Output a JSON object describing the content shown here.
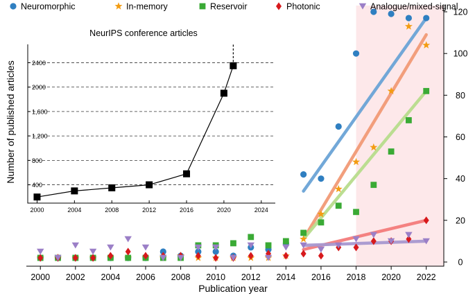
{
  "chart_data": [
    {
      "type": "scatter",
      "xlabel": "Publication year",
      "ylabel": "Number of published articles",
      "x": [
        2000,
        2001,
        2002,
        2003,
        2004,
        2005,
        2006,
        2007,
        2008,
        2009,
        2010,
        2011,
        2012,
        2013,
        2014,
        2015,
        2016,
        2017,
        2018,
        2019,
        2020,
        2021,
        2022
      ],
      "xlim": [
        1999.2,
        2023.0
      ],
      "ylim": [
        -2,
        123
      ],
      "xticks": [
        2000,
        2002,
        2004,
        2006,
        2008,
        2010,
        2012,
        2014,
        2016,
        2018,
        2020,
        2022
      ],
      "xtick_labels": [
        "2000",
        "2002",
        "2004",
        "2006",
        "2008",
        "2010",
        "2012",
        "2014",
        "2016",
        "2018",
        "2020",
        "2022"
      ],
      "yticks": [
        0,
        20,
        40,
        60,
        80,
        100,
        120
      ],
      "ytick_labels": [
        "0",
        "20",
        "40",
        "60",
        "80",
        "100",
        "120"
      ],
      "shaded_region": {
        "from": 2018,
        "to": 2023.0,
        "color": "#fde8ea"
      },
      "series": [
        {
          "name": "Neuromorphic",
          "marker": "circle",
          "color": "#2f7fc1",
          "values": [
            2,
            2,
            2,
            2,
            2,
            2,
            2,
            5,
            3,
            5,
            5,
            3,
            7,
            6,
            9,
            42,
            40,
            65,
            100,
            120,
            119,
            117,
            117
          ],
          "trend": {
            "x": [
              2015,
              2022
            ],
            "y": [
              34,
              117
            ],
            "color": "#6aa3d6"
          }
        },
        {
          "name": "In-memory",
          "marker": "star",
          "color": "#f39c12",
          "values": [
            2,
            2,
            2,
            2,
            2,
            2,
            2,
            2,
            3,
            2,
            2,
            2,
            2,
            2,
            3,
            11,
            23,
            35,
            48,
            55,
            82,
            113,
            104
          ],
          "trend": {
            "x": [
              2015,
              2022
            ],
            "y": [
              11,
              109
            ],
            "color": "#f19a76"
          }
        },
        {
          "name": "Reservoir",
          "marker": "square",
          "color": "#3aaa35",
          "values": [
            2,
            2,
            2,
            2,
            2,
            2,
            2,
            2,
            2,
            8,
            8,
            9,
            12,
            8,
            10,
            14,
            19,
            27,
            24,
            37,
            53,
            68,
            82
          ],
          "trend": {
            "x": [
              2015,
              2022
            ],
            "y": [
              11,
              82
            ],
            "color": "#b7dc8c"
          }
        },
        {
          "name": "Photonic",
          "marker": "diamond",
          "color": "#d7191c",
          "values": [
            2,
            2,
            2,
            2,
            3,
            5,
            3,
            3,
            3,
            3,
            2,
            2,
            3,
            4,
            3,
            4,
            3,
            7,
            7,
            10,
            10,
            11,
            20
          ],
          "trend": {
            "x": [
              2015,
              2022
            ],
            "y": [
              6,
              20
            ],
            "color": "#f37b7b"
          }
        },
        {
          "name": "Analogue/mixed-signal",
          "marker": "triangle",
          "color": "#9b7fc7",
          "values": [
            5,
            2,
            8,
            5,
            7,
            11,
            7,
            2,
            2,
            7,
            7,
            2,
            8,
            2,
            7,
            8,
            6,
            8,
            11,
            13,
            10,
            13,
            10
          ],
          "trend": {
            "x": [
              2015,
              2022
            ],
            "y": [
              8,
              10
            ],
            "color": "#a898d0"
          }
        }
      ]
    },
    {
      "type": "line",
      "title": "NeurIPS conference articles",
      "x": [
        2000,
        2004,
        2008,
        2012,
        2016,
        2020,
        2021
      ],
      "values": [
        200,
        300,
        350,
        400,
        580,
        1900,
        2350
      ],
      "xlim": [
        1999,
        2025.5
      ],
      "ylim": [
        100,
        2700
      ],
      "xticks": [
        2000,
        2004,
        2008,
        2012,
        2016,
        2020,
        2024
      ],
      "xtick_labels": [
        "2000",
        "2004",
        "2008",
        "2012",
        "2016",
        "2020",
        "2024"
      ],
      "yticks": [
        400,
        800,
        1200,
        1600,
        2000,
        2400
      ],
      "ytick_labels": [
        "400",
        "800",
        "1,200",
        "1,600",
        "2000",
        "2400"
      ],
      "grid": "horizontal-dashed",
      "dashed_extension": {
        "x": 2021,
        "y_from": 2350,
        "y_to": 2700
      }
    }
  ]
}
